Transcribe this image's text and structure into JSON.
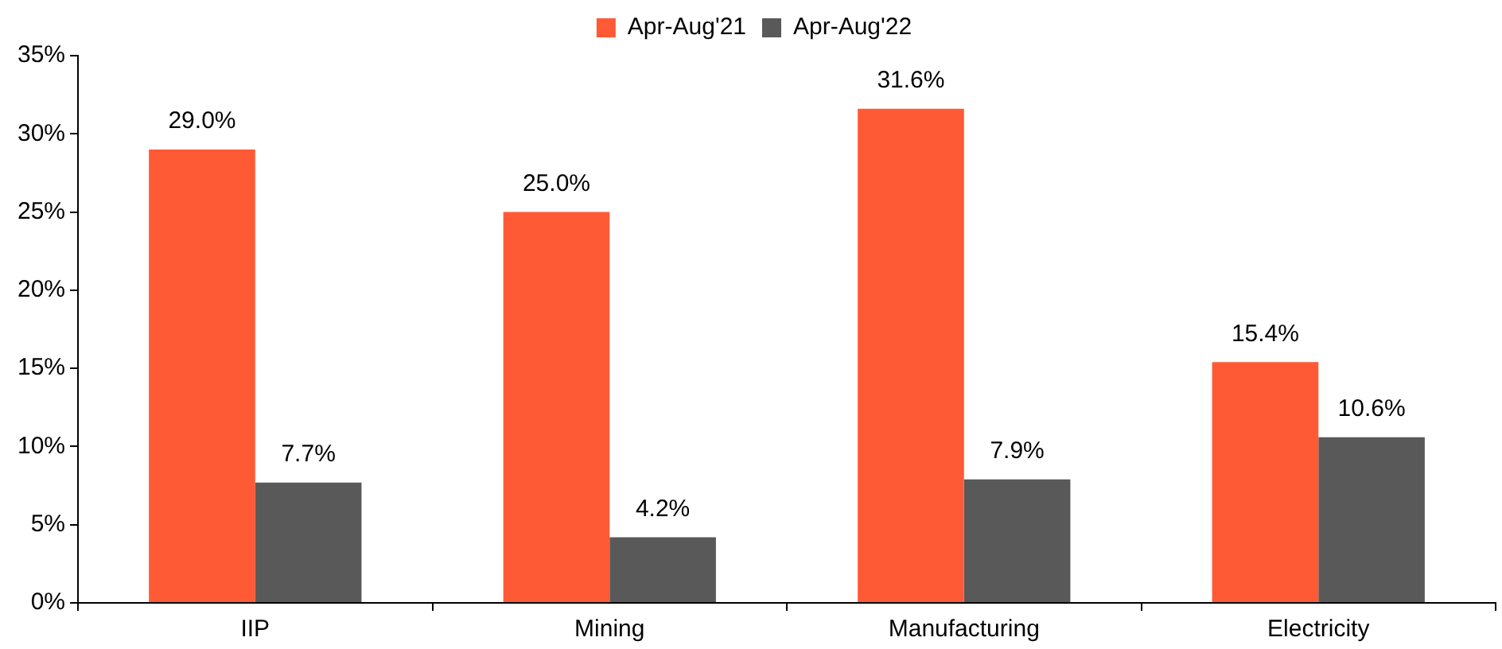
{
  "chart_data": {
    "type": "bar",
    "categories": [
      "IIP",
      "Mining",
      "Manufacturing",
      "Electricity"
    ],
    "series": [
      {
        "name": "Apr-Aug'21",
        "color": "#ff5a36",
        "values": [
          29.0,
          25.0,
          31.6,
          15.4
        ],
        "value_labels": [
          "29.0%",
          "25.0%",
          "31.6%",
          "15.4%"
        ]
      },
      {
        "name": "Apr-Aug'22",
        "color": "#595959",
        "values": [
          7.7,
          4.2,
          7.9,
          10.6
        ],
        "value_labels": [
          "7.7%",
          "4.2%",
          "7.9%",
          "10.6%"
        ]
      }
    ],
    "ylim": [
      0,
      35
    ],
    "yticks": [
      {
        "value": 0,
        "label": "0%"
      },
      {
        "value": 5,
        "label": "5%"
      },
      {
        "value": 10,
        "label": "10%"
      },
      {
        "value": 15,
        "label": "15%"
      },
      {
        "value": 20,
        "label": "20%"
      },
      {
        "value": 25,
        "label": "25%"
      },
      {
        "value": 30,
        "label": "30%"
      },
      {
        "value": 35,
        "label": "35%"
      }
    ],
    "grid": false,
    "legend": "top"
  }
}
